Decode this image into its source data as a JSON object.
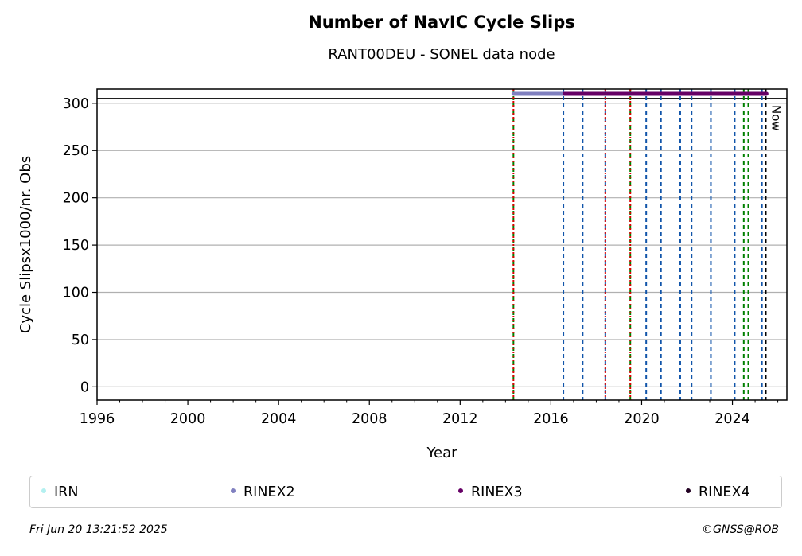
{
  "chart_data": {
    "type": "scatter",
    "title": "Number of NavIC Cycle Slips",
    "subtitle": "RANT00DEU - SONEL data node",
    "xlabel": "Year",
    "ylabel": "Cycle Slipsx1000/nr. Obs",
    "xlim": [
      1996,
      2026.4
    ],
    "ylim": [
      -14,
      315
    ],
    "xticks": [
      1996,
      2000,
      2004,
      2008,
      2012,
      2016,
      2020,
      2024
    ],
    "yticks": [
      0,
      50,
      100,
      150,
      200,
      250,
      300
    ],
    "grid": "horizontal",
    "reference_line_y": 305,
    "series": [
      {
        "name": "IRN",
        "color": "#b3f0f0",
        "points": []
      },
      {
        "name": "RINEX2",
        "color": "#8080c0",
        "segments": [
          [
            2014.35,
            2016.6
          ]
        ],
        "y": 310
      },
      {
        "name": "RINEX3",
        "color": "#660066",
        "segments": [
          [
            2016.6,
            2025.5
          ]
        ],
        "y": 310
      },
      {
        "name": "RINEX4",
        "color": "#220022",
        "points": []
      }
    ],
    "event_lines": [
      {
        "x": 2014.35,
        "color": "#008000",
        "style": "dashed"
      },
      {
        "x": 2014.35,
        "color": "#dd0000",
        "style": "dotted"
      },
      {
        "x": 2016.55,
        "color": "#1155aa",
        "style": "dashed"
      },
      {
        "x": 2017.4,
        "color": "#1155aa",
        "style": "dashed"
      },
      {
        "x": 2018.4,
        "color": "#1155aa",
        "style": "dashed"
      },
      {
        "x": 2018.4,
        "color": "#dd0000",
        "style": "dotted"
      },
      {
        "x": 2019.5,
        "color": "#008000",
        "style": "dashed"
      },
      {
        "x": 2019.5,
        "color": "#dd0000",
        "style": "dotted"
      },
      {
        "x": 2020.2,
        "color": "#1155aa",
        "style": "dashed"
      },
      {
        "x": 2020.85,
        "color": "#1155aa",
        "style": "dashed"
      },
      {
        "x": 2021.7,
        "color": "#1155aa",
        "style": "dashed"
      },
      {
        "x": 2022.2,
        "color": "#1155aa",
        "style": "dashed"
      },
      {
        "x": 2023.05,
        "color": "#1155aa",
        "style": "dashed"
      },
      {
        "x": 2024.1,
        "color": "#1155aa",
        "style": "dashed"
      },
      {
        "x": 2024.5,
        "color": "#008000",
        "style": "dashed"
      },
      {
        "x": 2024.7,
        "color": "#008000",
        "style": "dashed"
      },
      {
        "x": 2025.3,
        "color": "#1155aa",
        "style": "dashed"
      },
      {
        "x": 2025.47,
        "color": "#000000",
        "style": "dashed"
      }
    ],
    "now_label": "Now",
    "now_x": 2025.47
  },
  "legend": [
    {
      "label": "IRN",
      "color": "#b3f0f0"
    },
    {
      "label": "RINEX2",
      "color": "#8080c0"
    },
    {
      "label": "RINEX3",
      "color": "#660066"
    },
    {
      "label": "RINEX4",
      "color": "#220022"
    }
  ],
  "footer": {
    "timestamp": "Fri Jun 20 13:21:52 2025",
    "credit": "©GNSS@ROB"
  }
}
